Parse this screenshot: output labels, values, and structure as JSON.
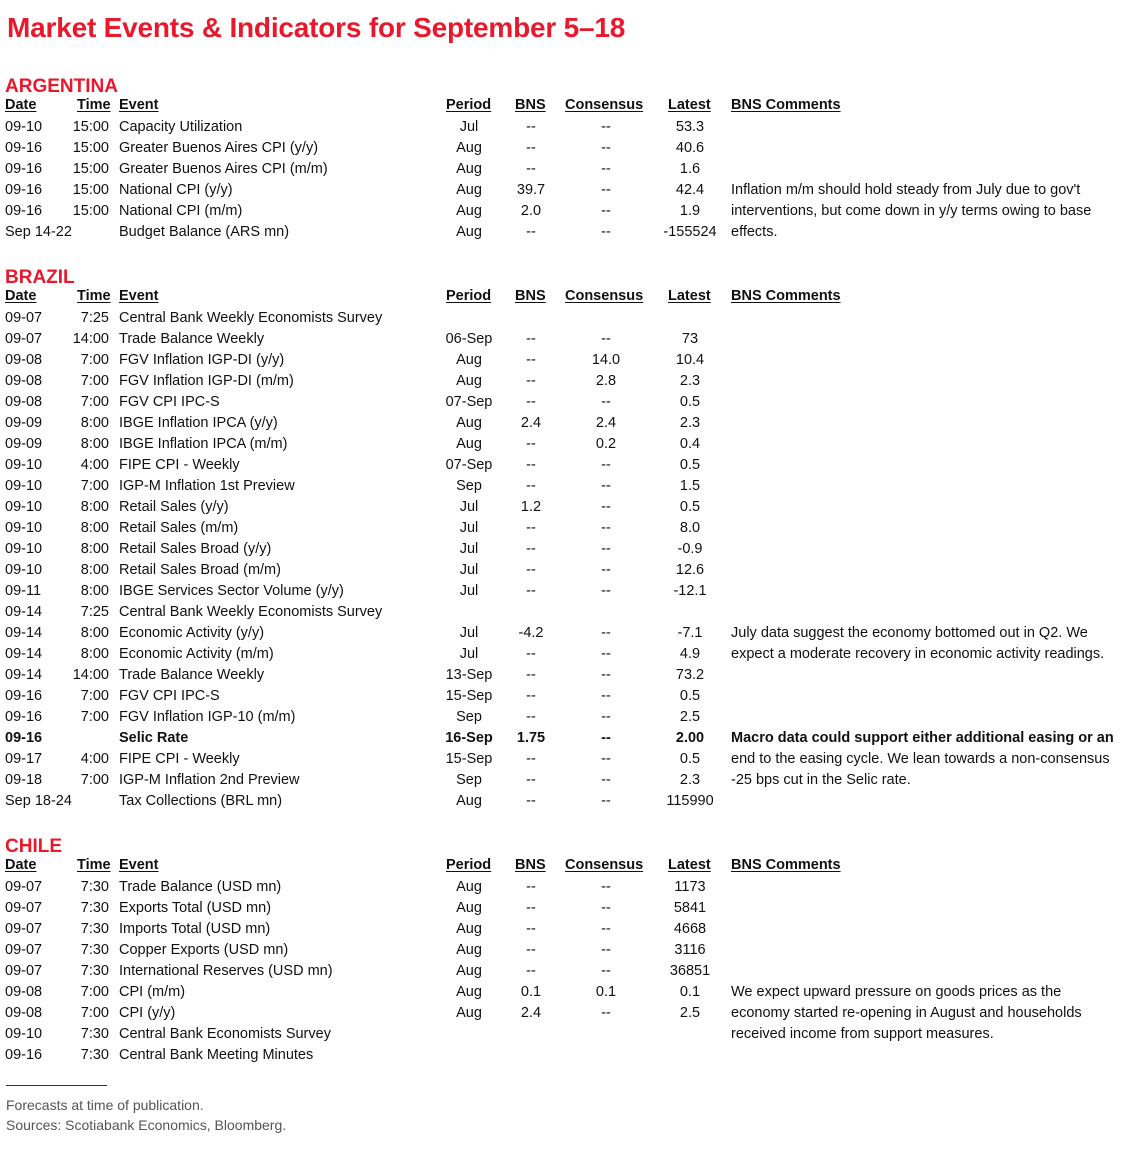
{
  "title": "Market Events & Indicators for September 5–18",
  "headers": {
    "date": "Date",
    "time": "Time",
    "event": "Event",
    "period": "Period",
    "bns": "BNS",
    "consensus": "Consensus",
    "latest": "Latest",
    "comments": "BNS Comments"
  },
  "sections": [
    {
      "name": "ARGENTINA",
      "rows": [
        {
          "date": "09-10",
          "time": "15:00",
          "event": "Capacity Utilization",
          "period": "Jul",
          "bns": "--",
          "consensus": "--",
          "latest": "53.3"
        },
        {
          "date": "09-16",
          "time": "15:00",
          "event": "Greater Buenos Aires CPI (y/y)",
          "period": "Aug",
          "bns": "--",
          "consensus": "--",
          "latest": "40.6"
        },
        {
          "date": "09-16",
          "time": "15:00",
          "event": "Greater Buenos Aires CPI (m/m)",
          "period": "Aug",
          "bns": "--",
          "consensus": "--",
          "latest": "1.6"
        },
        {
          "date": "09-16",
          "time": "15:00",
          "event": "National CPI (y/y)",
          "period": "Aug",
          "bns": "39.7",
          "consensus": "--",
          "latest": "42.4",
          "comment": "Inflation m/m should hold steady from July due to gov't"
        },
        {
          "date": "09-16",
          "time": "15:00",
          "event": "National CPI (m/m)",
          "period": "Aug",
          "bns": "2.0",
          "consensus": "--",
          "latest": "1.9",
          "comment": "interventions, but come down in y/y terms owing to base"
        },
        {
          "date": "Sep 14-22",
          "time": "",
          "event": "Budget Balance (ARS mn)",
          "period": "Aug",
          "bns": "--",
          "consensus": "--",
          "latest": "-155524",
          "comment": "effects."
        }
      ]
    },
    {
      "name": "BRAZIL",
      "rows": [
        {
          "date": "09-07",
          "time": "7:25",
          "event": "Central Bank Weekly Economists Survey",
          "period": "",
          "bns": "",
          "consensus": "",
          "latest": ""
        },
        {
          "date": "09-07",
          "time": "14:00",
          "event": "Trade Balance Weekly",
          "period": "06-Sep",
          "bns": "--",
          "consensus": "--",
          "latest": "73"
        },
        {
          "date": "09-08",
          "time": "7:00",
          "event": "FGV Inflation IGP-DI (y/y)",
          "period": "Aug",
          "bns": "--",
          "consensus": "14.0",
          "latest": "10.4"
        },
        {
          "date": "09-08",
          "time": "7:00",
          "event": "FGV Inflation IGP-DI (m/m)",
          "period": "Aug",
          "bns": "--",
          "consensus": "2.8",
          "latest": "2.3"
        },
        {
          "date": "09-08",
          "time": "7:00",
          "event": "FGV CPI IPC-S",
          "period": "07-Sep",
          "bns": "--",
          "consensus": "--",
          "latest": "0.5"
        },
        {
          "date": "09-09",
          "time": "8:00",
          "event": "IBGE Inflation IPCA (y/y)",
          "period": "Aug",
          "bns": "2.4",
          "consensus": "2.4",
          "latest": "2.3"
        },
        {
          "date": "09-09",
          "time": "8:00",
          "event": "IBGE Inflation IPCA (m/m)",
          "period": "Aug",
          "bns": "--",
          "consensus": "0.2",
          "latest": "0.4"
        },
        {
          "date": "09-10",
          "time": "4:00",
          "event": "FIPE CPI - Weekly",
          "period": "07-Sep",
          "bns": "--",
          "consensus": "--",
          "latest": "0.5"
        },
        {
          "date": "09-10",
          "time": "7:00",
          "event": "IGP-M Inflation 1st Preview",
          "period": "Sep",
          "bns": "--",
          "consensus": "--",
          "latest": "1.5"
        },
        {
          "date": "09-10",
          "time": "8:00",
          "event": "Retail Sales (y/y)",
          "period": "Jul",
          "bns": "1.2",
          "consensus": "--",
          "latest": "0.5"
        },
        {
          "date": "09-10",
          "time": "8:00",
          "event": "Retail Sales (m/m)",
          "period": "Jul",
          "bns": "--",
          "consensus": "--",
          "latest": "8.0"
        },
        {
          "date": "09-10",
          "time": "8:00",
          "event": "Retail Sales Broad (y/y)",
          "period": "Jul",
          "bns": "--",
          "consensus": "--",
          "latest": "-0.9"
        },
        {
          "date": "09-10",
          "time": "8:00",
          "event": "Retail Sales Broad (m/m)",
          "period": "Jul",
          "bns": "--",
          "consensus": "--",
          "latest": "12.6"
        },
        {
          "date": "09-11",
          "time": "8:00",
          "event": "IBGE Services Sector Volume (y/y)",
          "period": "Jul",
          "bns": "--",
          "consensus": "--",
          "latest": "-12.1"
        },
        {
          "date": "09-14",
          "time": "7:25",
          "event": "Central Bank Weekly Economists Survey",
          "period": "",
          "bns": "",
          "consensus": "",
          "latest": ""
        },
        {
          "date": "09-14",
          "time": "8:00",
          "event": "Economic Activity (y/y)",
          "period": "Jul",
          "bns": "-4.2",
          "consensus": "--",
          "latest": "-7.1",
          "comment": "July data suggest the economy bottomed out in Q2. We"
        },
        {
          "date": "09-14",
          "time": "8:00",
          "event": "Economic Activity (m/m)",
          "period": "Jul",
          "bns": "--",
          "consensus": "--",
          "latest": "4.9",
          "comment": "expect a moderate recovery in economic activity readings."
        },
        {
          "date": "09-14",
          "time": "14:00",
          "event": "Trade Balance Weekly",
          "period": "13-Sep",
          "bns": "--",
          "consensus": "--",
          "latest": "73.2"
        },
        {
          "date": "09-16",
          "time": "7:00",
          "event": "FGV CPI IPC-S",
          "period": "15-Sep",
          "bns": "--",
          "consensus": "--",
          "latest": "0.5"
        },
        {
          "date": "09-16",
          "time": "7:00",
          "event": "FGV Inflation IGP-10 (m/m)",
          "period": "Sep",
          "bns": "--",
          "consensus": "--",
          "latest": "2.5"
        },
        {
          "date": "09-16",
          "time": "",
          "event": "Selic Rate",
          "period": "16-Sep",
          "bns": "1.75",
          "consensus": "--",
          "latest": "2.00",
          "bold": true,
          "comment": "Macro data could support either additional easing or an"
        },
        {
          "date": "09-17",
          "time": "4:00",
          "event": "FIPE CPI - Weekly",
          "period": "15-Sep",
          "bns": "--",
          "consensus": "--",
          "latest": "0.5",
          "comment": "end to the easing cycle. We lean towards a non-consensus"
        },
        {
          "date": "09-18",
          "time": "7:00",
          "event": "IGP-M Inflation 2nd Preview",
          "period": "Sep",
          "bns": "--",
          "consensus": "--",
          "latest": "2.3",
          "comment": "-25 bps cut in the Selic rate."
        },
        {
          "date": "Sep 18-24",
          "time": "",
          "event": "Tax Collections (BRL mn)",
          "period": "Aug",
          "bns": "--",
          "consensus": "--",
          "latest": "115990"
        }
      ]
    },
    {
      "name": "CHILE",
      "rows": [
        {
          "date": "09-07",
          "time": "7:30",
          "event": "Trade Balance (USD mn)",
          "period": "Aug",
          "bns": "--",
          "consensus": "--",
          "latest": "1173"
        },
        {
          "date": "09-07",
          "time": "7:30",
          "event": "Exports Total (USD mn)",
          "period": "Aug",
          "bns": "--",
          "consensus": "--",
          "latest": "5841"
        },
        {
          "date": "09-07",
          "time": "7:30",
          "event": "Imports Total (USD mn)",
          "period": "Aug",
          "bns": "--",
          "consensus": "--",
          "latest": "4668"
        },
        {
          "date": "09-07",
          "time": "7:30",
          "event": "Copper Exports (USD mn)",
          "period": "Aug",
          "bns": "--",
          "consensus": "--",
          "latest": "3116"
        },
        {
          "date": "09-07",
          "time": "7:30",
          "event": "International Reserves (USD mn)",
          "period": "Aug",
          "bns": "--",
          "consensus": "--",
          "latest": "36851"
        },
        {
          "date": "09-08",
          "time": "7:00",
          "event": "CPI (m/m)",
          "period": "Aug",
          "bns": "0.1",
          "consensus": "0.1",
          "latest": "0.1",
          "comment": "We expect upward pressure on goods prices as the"
        },
        {
          "date": "09-08",
          "time": "7:00",
          "event": "CPI (y/y)",
          "period": "Aug",
          "bns": "2.4",
          "consensus": "--",
          "latest": "2.5",
          "comment": "economy started re-opening in August and households"
        },
        {
          "date": "09-10",
          "time": "7:30",
          "event": "Central Bank Economists Survey",
          "period": "",
          "bns": "",
          "consensus": "",
          "latest": "",
          "comment": "received income from support measures."
        },
        {
          "date": "09-16",
          "time": "7:30",
          "event": "Central Bank Meeting Minutes",
          "period": "",
          "bns": "",
          "consensus": "",
          "latest": ""
        }
      ]
    }
  ],
  "footer": {
    "note": "Forecasts at time of publication.",
    "sources": "Sources: Scotiabank Economics, Bloomberg."
  },
  "colors": {
    "accent": "#e8192c"
  }
}
